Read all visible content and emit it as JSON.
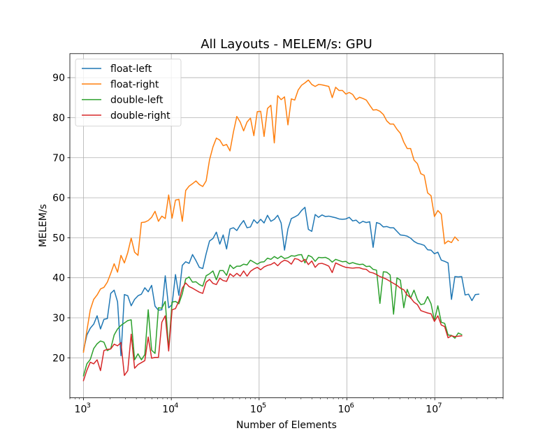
{
  "chart_data": {
    "type": "line",
    "title": "All Layouts - MELEM/s: GPU",
    "xlabel": "Number of Elements",
    "ylabel": "MELEM/s",
    "xscale": "log",
    "xlim": [
      700,
      60000000
    ],
    "ylim": [
      10,
      96
    ],
    "xticks": [
      {
        "value": 1000,
        "base": "10",
        "exp": "3"
      },
      {
        "value": 10000,
        "base": "10",
        "exp": "4"
      },
      {
        "value": 100000,
        "base": "10",
        "exp": "5"
      },
      {
        "value": 1000000,
        "base": "10",
        "exp": "6"
      },
      {
        "value": 10000000,
        "base": "10",
        "exp": "7"
      }
    ],
    "yticks": [
      20,
      30,
      40,
      50,
      60,
      70,
      80,
      90
    ],
    "grid": true,
    "legend_position": "upper-left",
    "log_x_start": 3.0,
    "log_x_step": 0.0388,
    "series": [
      {
        "name": "float-left",
        "color": "#1f77b4",
        "values": [
          21.8,
          25.7,
          27.4,
          28.4,
          30.5,
          27.2,
          29.6,
          29.8,
          36.1,
          36.9,
          34.0,
          20.5,
          35.8,
          35.5,
          33.0,
          34.6,
          35.5,
          35.9,
          37.5,
          36.5,
          38.1,
          32.9,
          31.9,
          32.0,
          40.5,
          32.5,
          33.3,
          40.8,
          35.6,
          43.1,
          44.0,
          43.6,
          45.8,
          44.3,
          42.6,
          42.3,
          46.0,
          49.2,
          49.8,
          51.4,
          48.4,
          50.7,
          47.2,
          52.2,
          52.5,
          51.8,
          53.2,
          54.3,
          52.5,
          52.7,
          54.5,
          53.6,
          54.6,
          53.7,
          55.6,
          54.1,
          54.6,
          55.6,
          53.7,
          46.9,
          52.2,
          54.8,
          55.2,
          55.7,
          56.8,
          57.6,
          52.1,
          51.6,
          55.8,
          55.1,
          55.7,
          55.3,
          55.4,
          55.2,
          55.0,
          54.7,
          54.6,
          54.7,
          55.1,
          54.2,
          54.4,
          53.6,
          54.1,
          53.8,
          54.0,
          47.6,
          53.8,
          53.5,
          52.7,
          52.8,
          52.5,
          52.5,
          51.6,
          50.7,
          50.6,
          50.4,
          49.9,
          49.1,
          48.6,
          48.4,
          48.1,
          47.0,
          46.9,
          46.0,
          46.4,
          44.4,
          44.1,
          43.7,
          34.6,
          40.3,
          40.2,
          40.3,
          35.7,
          35.9,
          34.3,
          35.8,
          35.9
        ]
      },
      {
        "name": "float-right",
        "color": "#ff7f0e",
        "values": [
          21.4,
          26.8,
          32.0,
          34.6,
          35.7,
          37.2,
          37.6,
          38.9,
          41.1,
          43.5,
          41.4,
          45.6,
          43.7,
          46.3,
          49.9,
          46.4,
          45.6,
          53.8,
          53.9,
          54.3,
          55.1,
          56.6,
          54.1,
          55.4,
          54.8,
          60.7,
          54.9,
          59.4,
          59.6,
          54.1,
          61.8,
          62.9,
          63.5,
          64.2,
          63.3,
          62.8,
          64.2,
          69.5,
          72.7,
          74.9,
          74.4,
          73.0,
          73.3,
          71.7,
          76.4,
          80.3,
          78.9,
          76.7,
          78.9,
          79.9,
          75.5,
          81.5,
          81.6,
          75.3,
          82.3,
          83.1,
          73.7,
          85.5,
          84.5,
          85.2,
          78.2,
          84.7,
          84.4,
          86.9,
          88.1,
          88.7,
          89.4,
          88.3,
          87.8,
          88.3,
          88.2,
          88.0,
          87.8,
          85.0,
          87.6,
          86.8,
          86.8,
          85.9,
          86.3,
          85.8,
          84.5,
          85.1,
          84.8,
          84.4,
          83.1,
          81.9,
          82.0,
          81.6,
          80.8,
          79.2,
          78.4,
          78.4,
          77.1,
          76.1,
          73.9,
          72.3,
          72.3,
          69.4,
          68.5,
          66.0,
          65.6,
          61.2,
          60.5,
          55.3,
          56.8,
          55.9,
          48.5,
          49.2,
          48.8,
          50.2,
          49.3
        ]
      },
      {
        "name": "double-left",
        "color": "#2ca02c",
        "values": [
          15.5,
          18.5,
          19.6,
          22.3,
          23.5,
          24.2,
          23.9,
          21.8,
          22.3,
          25.7,
          27.2,
          28.1,
          28.7,
          29.3,
          29.5,
          19.5,
          21.0,
          19.5,
          20.8,
          32.0,
          21.9,
          21.1,
          32.5,
          32.4,
          34.1,
          22.2,
          33.9,
          34.1,
          33.5,
          36.0,
          39.7,
          40.2,
          38.9,
          39.0,
          38.3,
          37.9,
          40.5,
          41.0,
          41.7,
          39.5,
          41.8,
          41.8,
          40.6,
          43.2,
          42.3,
          42.9,
          42.9,
          43.4,
          43.2,
          44.4,
          43.9,
          43.4,
          43.9,
          44.0,
          44.9,
          44.6,
          45.3,
          44.8,
          45.4,
          44.8,
          45.0,
          45.5,
          45.4,
          45.7,
          45.8,
          43.7,
          45.6,
          45.2,
          44.1,
          45.1,
          45.0,
          45.1,
          44.7,
          43.9,
          44.6,
          44.3,
          44.0,
          44.1,
          43.5,
          43.8,
          43.5,
          43.3,
          43.4,
          42.8,
          42.9,
          42.1,
          41.9,
          33.6,
          41.5,
          41.4,
          40.7,
          30.9,
          40.0,
          39.4,
          32.5,
          37.1,
          34.9,
          36.9,
          34.5,
          33.3,
          33.5,
          35.3,
          33.5,
          29.3,
          33.0,
          28.9,
          28.6,
          25.7,
          25.6,
          24.9,
          26.2,
          25.8
        ]
      },
      {
        "name": "double-right",
        "color": "#d62728",
        "values": [
          14.3,
          16.9,
          18.9,
          18.5,
          19.5,
          16.8,
          21.8,
          22.1,
          22.2,
          23.4,
          23.0,
          23.8,
          15.6,
          16.8,
          25.9,
          17.4,
          18.3,
          18.8,
          19.3,
          25.2,
          19.9,
          20.1,
          20.1,
          28.9,
          30.5,
          21.7,
          32.0,
          32.3,
          34.2,
          37.4,
          38.7,
          37.8,
          37.4,
          36.9,
          36.4,
          36.1,
          38.9,
          39.6,
          38.6,
          38.3,
          39.9,
          39.3,
          39.1,
          41.0,
          40.3,
          41.1,
          40.4,
          41.7,
          40.4,
          41.6,
          42.2,
          42.6,
          42.0,
          42.7,
          43.1,
          43.3,
          43.8,
          43.0,
          43.9,
          44.4,
          44.1,
          43.4,
          44.8,
          44.6,
          44.0,
          44.6,
          43.3,
          44.2,
          42.6,
          43.5,
          43.6,
          43.3,
          42.9,
          41.3,
          43.7,
          43.3,
          42.9,
          42.6,
          42.5,
          42.4,
          42.5,
          42.5,
          42.2,
          42.1,
          41.4,
          41.2,
          40.8,
          40.3,
          40.0,
          39.6,
          39.1,
          38.6,
          38.1,
          37.4,
          37.0,
          35.7,
          35.0,
          33.9,
          33.3,
          31.8,
          31.5,
          31.2,
          31.0,
          29.1,
          30.5,
          28.2,
          27.8,
          25.0,
          25.5,
          25.3,
          25.4,
          25.5
        ]
      }
    ]
  }
}
